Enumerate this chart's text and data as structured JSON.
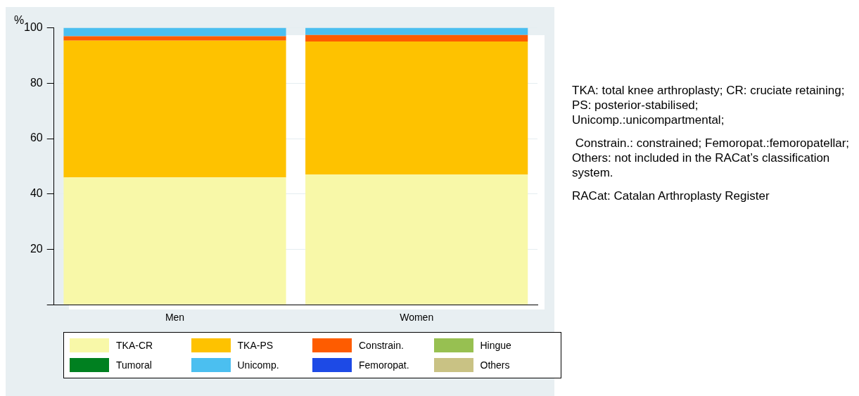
{
  "chart_data": {
    "type": "bar",
    "stacked": true,
    "ylabel": "%",
    "categories": [
      "Men",
      "Women"
    ],
    "series": [
      {
        "name": "TKA-CR",
        "color": "#f8f8a8",
        "values": [
          46,
          47
        ]
      },
      {
        "name": "TKA-PS",
        "color": "#fec200",
        "values": [
          49.4,
          48.1
        ]
      },
      {
        "name": "Constrain.",
        "color": "#fe5c00",
        "values": [
          1.6,
          2.3
        ]
      },
      {
        "name": "Hingue",
        "color": "#97c051",
        "values": [
          0,
          0
        ]
      },
      {
        "name": "Tumoral",
        "color": "#008020",
        "values": [
          0,
          0
        ]
      },
      {
        "name": "Unicomp.",
        "color": "#4bbff0",
        "values": [
          3,
          2.6
        ]
      },
      {
        "name": "Femoropat.",
        "color": "#1d4ae6",
        "values": [
          0,
          0
        ]
      },
      {
        "name": "Others",
        "color": "#c9c284",
        "values": [
          0,
          0
        ]
      }
    ],
    "ylim": [
      0,
      100
    ],
    "yticks": [
      {
        "value": 0,
        "label": null
      },
      20,
      40,
      60,
      80,
      100
    ],
    "grid": "y",
    "legend": "bottom",
    "annotations": [
      "TKA: total knee arthroplasty; CR: cruciate retaining; PS: posterior-stabilised; Unicomp.:unicompartmental;",
      " Constrain.: constrained; Femoropat.:femoropatellar; Others: not included in the RACat’s classification system.",
      "RACat: Catalan Arthroplasty Register"
    ]
  }
}
